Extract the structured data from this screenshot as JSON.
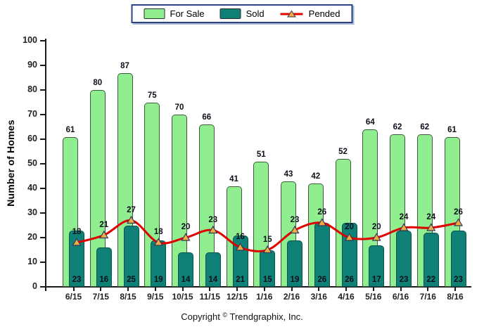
{
  "legend": {
    "items": [
      {
        "label": "For Sale",
        "type": "box",
        "color": "#90EE90"
      },
      {
        "label": "Sold",
        "type": "box",
        "color": "#0E8076"
      },
      {
        "label": "Pended",
        "type": "line-marker",
        "color": "#E00000",
        "marker_color": "#F5A93F",
        "marker_outline": "#2F3C5E"
      }
    ]
  },
  "y_axis": {
    "title": "Number of Homes",
    "min": 0,
    "max": 100,
    "step": 10
  },
  "footer": {
    "prefix": "Copyright",
    "symbol": "©",
    "suffix": "Trendgraphix, Inc."
  },
  "chart_data": {
    "type": "bar",
    "title": "",
    "categories": [
      "6/15",
      "7/15",
      "8/15",
      "9/15",
      "10/15",
      "11/15",
      "12/15",
      "1/16",
      "2/16",
      "3/16",
      "4/16",
      "5/16",
      "6/16",
      "7/16",
      "8/16"
    ],
    "series": [
      {
        "name": "For Sale",
        "type": "bar",
        "color": "#90EE90",
        "values": [
          61,
          80,
          87,
          75,
          70,
          66,
          41,
          51,
          43,
          42,
          52,
          64,
          62,
          62,
          61
        ]
      },
      {
        "name": "Sold",
        "type": "bar",
        "color": "#0E8076",
        "values": [
          23,
          16,
          25,
          19,
          14,
          14,
          21,
          15,
          19,
          26,
          26,
          17,
          23,
          22,
          23
        ]
      },
      {
        "name": "Pended",
        "type": "line",
        "color": "#E00000",
        "marker": "triangle",
        "values": [
          18,
          21,
          27,
          18,
          20,
          23,
          16,
          15,
          23,
          26,
          20,
          20,
          24,
          24,
          26
        ]
      }
    ],
    "xlabel": "",
    "ylabel": "Number of Homes",
    "ylim": [
      0,
      100
    ],
    "grid": false,
    "legend_position": "top-center"
  }
}
